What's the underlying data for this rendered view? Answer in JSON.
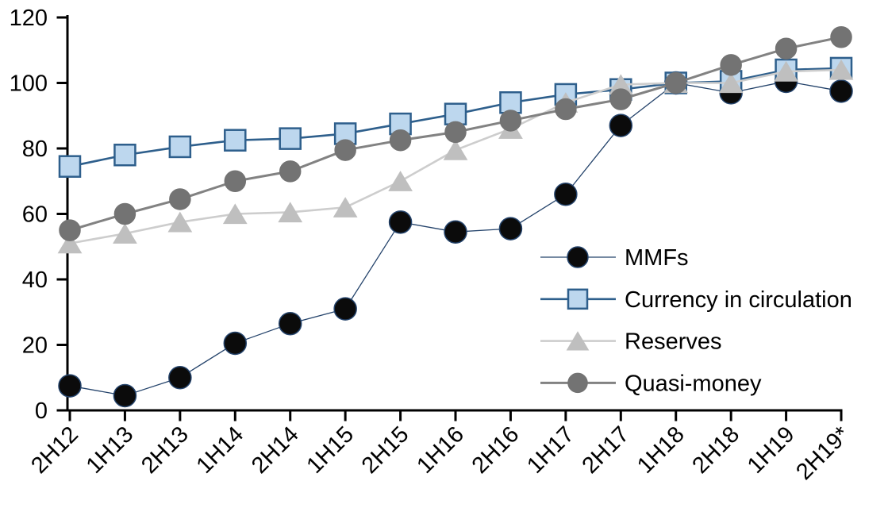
{
  "chart_data": {
    "type": "line",
    "title": "",
    "categories": [
      "2H12",
      "1H13",
      "2H13",
      "1H14",
      "2H14",
      "1H15",
      "2H15",
      "1H16",
      "2H16",
      "1H17",
      "2H17",
      "1H18",
      "2H18",
      "1H19",
      "2H19*"
    ],
    "series": [
      {
        "name": "MMFs",
        "values": [
          7.5,
          4.5,
          10,
          20.5,
          26.5,
          31,
          57.5,
          54.5,
          55.5,
          66,
          87,
          100,
          97,
          100.5,
          97.5
        ],
        "marker": "circle",
        "marker_fill": "#0b0b0b",
        "marker_stroke": "#24436b",
        "line_color": "#24436b",
        "line_width": 1.3,
        "marker_size": 28
      },
      {
        "name": "Currency in circulation",
        "values": [
          74.5,
          78,
          80.5,
          82.5,
          83,
          84.5,
          87.5,
          90.5,
          94,
          96.5,
          98,
          100,
          100.5,
          104,
          104.5
        ],
        "marker": "square",
        "marker_fill": "#bdd7ee",
        "marker_stroke": "#2e5f8c",
        "line_color": "#2e5f8c",
        "line_width": 2.6,
        "marker_size": 26
      },
      {
        "name": "Reserves",
        "values": [
          51,
          54,
          57.5,
          60,
          60.5,
          62,
          70,
          79.5,
          86,
          94,
          99.5,
          100,
          100,
          103.5,
          104
        ],
        "marker": "triangle",
        "marker_fill": "#bfbfbf",
        "marker_stroke": "#bfbfbf",
        "line_color": "#cdcdcd",
        "line_width": 2.6,
        "marker_size": 29
      },
      {
        "name": "Quasi-money",
        "values": [
          55,
          60,
          64.5,
          70,
          73,
          79.5,
          82.5,
          85,
          88.5,
          92,
          95,
          100,
          105.5,
          110.5,
          114
        ],
        "marker": "circle",
        "marker_fill": "#737373",
        "marker_stroke": "#737373",
        "line_color": "#828282",
        "line_width": 3,
        "marker_size": 26
      }
    ],
    "y_axis": {
      "min": 0,
      "max": 120,
      "step": 20,
      "tick_labels": [
        "0",
        "20",
        "40",
        "60",
        "80",
        "100",
        "120"
      ]
    },
    "x_axis": {
      "label_rotation_deg": -45
    },
    "legend": {
      "position": "inside-right",
      "entries": [
        "MMFs",
        "Currency in circulation",
        "Reserves",
        "Quasi-money"
      ]
    },
    "grid": "off",
    "axis_color": "#000000",
    "background": "#ffffff"
  }
}
